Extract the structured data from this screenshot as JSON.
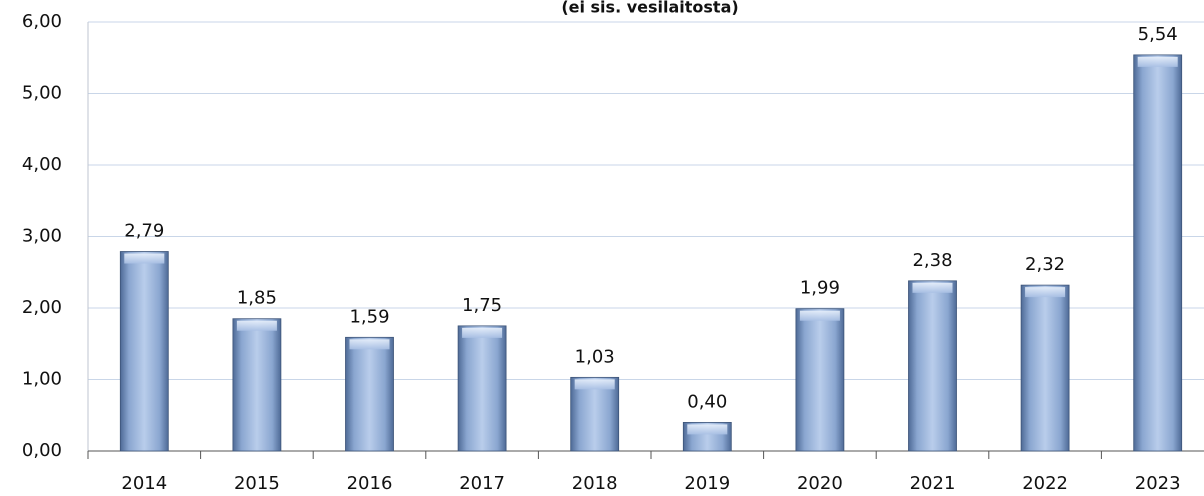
{
  "chart_data": {
    "type": "bar",
    "title": "(ei sis. vesilaitosta)",
    "categories": [
      "2014",
      "2015",
      "2016",
      "2017",
      "2018",
      "2019",
      "2020",
      "2021",
      "2022",
      "2023"
    ],
    "values": [
      2.79,
      1.85,
      1.59,
      1.75,
      1.03,
      0.4,
      1.99,
      2.38,
      2.32,
      5.54
    ],
    "value_labels": [
      "2,79",
      "1,85",
      "1,59",
      "1,75",
      "1,03",
      "0,40",
      "1,99",
      "2,38",
      "2,32",
      "5,54"
    ],
    "color": "#9db8e0",
    "ylim": [
      0,
      6
    ],
    "yticks": [
      {
        "value": 0,
        "label": "0,00"
      },
      {
        "value": 1,
        "label": "1,00"
      },
      {
        "value": 2,
        "label": "2,00"
      },
      {
        "value": 3,
        "label": "3,00"
      },
      {
        "value": 4,
        "label": "4,00"
      },
      {
        "value": 5,
        "label": "5,00"
      },
      {
        "value": 6,
        "label": "6,00"
      }
    ],
    "grid": true
  }
}
